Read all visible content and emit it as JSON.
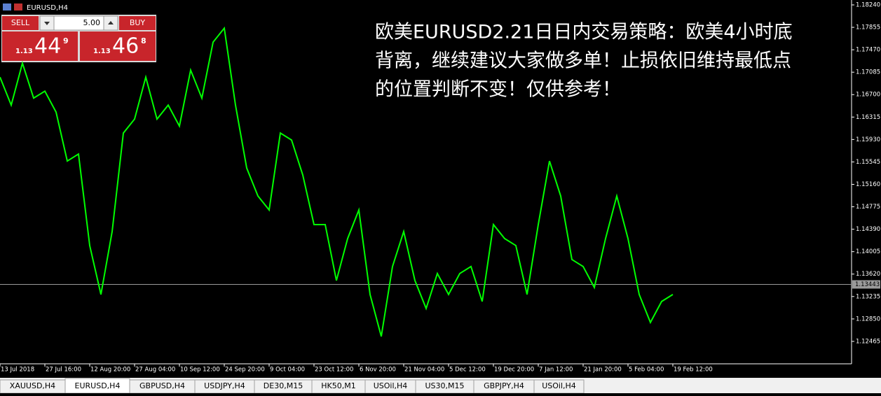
{
  "window": {
    "symbol_title": "EURUSD,H4"
  },
  "trade_panel": {
    "sell_label": "SELL",
    "buy_label": "BUY",
    "lots": "5.00",
    "sell_price": {
      "prefix": "1.13",
      "big": "44",
      "small": "9"
    },
    "buy_price": {
      "prefix": "1.13",
      "big": "46",
      "small": "8"
    }
  },
  "annotation": {
    "lines": [
      "欧美EURUSD2.21日日内交易策略：欧美4小时底",
      "背离，继续建议大家做多单！止损依旧维持最低点",
      "的位置判断不变！仅供参考！"
    ]
  },
  "chart_data": {
    "type": "line",
    "color": "#00ff00",
    "categories": [
      "13 Jul 2018",
      null,
      null,
      null,
      "27 Jul 16:00",
      null,
      null,
      null,
      "12 Aug 20:00",
      null,
      null,
      null,
      "27 Aug 04:00",
      null,
      null,
      null,
      "10 Sep 12:00",
      null,
      null,
      null,
      "24 Sep 20:00",
      null,
      null,
      null,
      "9 Oct 04:00",
      null,
      null,
      null,
      "23 Oct 12:00",
      null,
      null,
      null,
      "6 Nov 20:00",
      null,
      null,
      null,
      "21 Nov 04:00",
      null,
      null,
      null,
      "5 Dec 12:00",
      null,
      null,
      null,
      "19 Dec 20:00",
      null,
      null,
      null,
      "7 Jan 12:00",
      null,
      null,
      null,
      "21 Jan 20:00",
      null,
      null,
      null,
      "5 Feb 04:00",
      null,
      null,
      null,
      "19 Feb 12:00"
    ],
    "values": [
      1.17,
      1.1652,
      1.1724,
      1.1664,
      1.1676,
      1.164,
      1.1556,
      1.1568,
      1.1411,
      1.1327,
      1.1435,
      1.1604,
      1.1628,
      1.17,
      1.1628,
      1.1652,
      1.1616,
      1.1712,
      1.1664,
      1.176,
      1.1784,
      1.1652,
      1.1544,
      1.1496,
      1.1472,
      1.1604,
      1.1592,
      1.1532,
      1.1447,
      1.1447,
      1.1351,
      1.1423,
      1.1472,
      1.1327,
      1.1255,
      1.1375,
      1.1435,
      1.1351,
      1.1303,
      1.1363,
      1.1327,
      1.1363,
      1.1375,
      1.1315,
      1.1447,
      1.1423,
      1.1411,
      1.1327,
      1.1447,
      1.1556,
      1.1496,
      1.1387,
      1.1375,
      1.1339,
      1.1423,
      1.1496,
      1.1423,
      1.1327,
      1.1279,
      1.1315,
      1.1327
    ],
    "ylim": [
      1.1208,
      1.18324
    ],
    "yticks": [
      {
        "value": 1.1824,
        "label": "1.18240"
      },
      {
        "value": 1.17855,
        "label": "1.17855"
      },
      {
        "value": 1.1747,
        "label": "1.17470"
      },
      {
        "value": 1.17085,
        "label": "1.17085"
      },
      {
        "value": 1.167,
        "label": "1.16700"
      },
      {
        "value": 1.16315,
        "label": "1.16315"
      },
      {
        "value": 1.1593,
        "label": "1.15930"
      },
      {
        "value": 1.15545,
        "label": "1.15545"
      },
      {
        "value": 1.1516,
        "label": "1.15160"
      },
      {
        "value": 1.14775,
        "label": "1.14775"
      },
      {
        "value": 1.1439,
        "label": "1.14390"
      },
      {
        "value": 1.14005,
        "label": "1.14005"
      },
      {
        "value": 1.1362,
        "label": "1.13620"
      },
      {
        "value": 1.13235,
        "label": "1.13235"
      },
      {
        "value": 1.1285,
        "label": "1.12850"
      },
      {
        "value": 1.12465,
        "label": "1.12465"
      }
    ],
    "current_price": {
      "value": 1.13443,
      "label": "1.13443"
    }
  },
  "tabs": [
    "XAUUSD,H4",
    "EURUSD,H4",
    "GBPUSD,H4",
    "USDJPY,H4",
    "DE30,M15",
    "HK50,M1",
    "USOil,H4",
    "US30,M15",
    "GBPJPY,H4",
    "USOil,H4"
  ],
  "active_tab": "EURUSD,H4"
}
